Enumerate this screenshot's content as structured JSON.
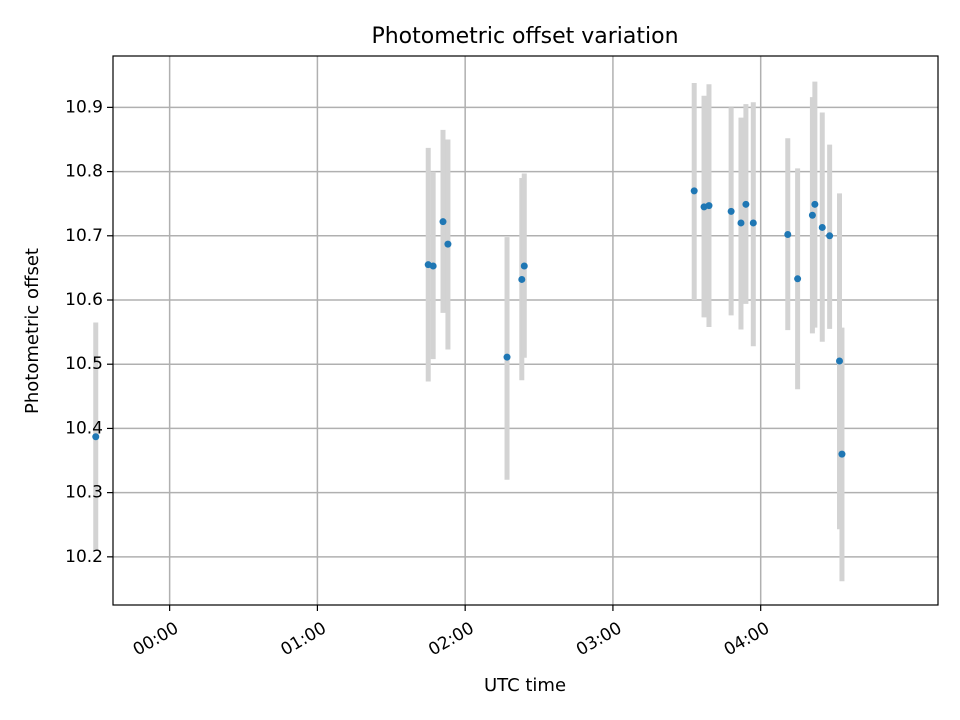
{
  "chart_data": {
    "type": "scatter",
    "title": "Photometric offset variation",
    "xlabel": "UTC time",
    "ylabel": "Photometric offset",
    "x_unit": "hours UTC",
    "xlim": [
      "23:37",
      "05:12"
    ],
    "ylim": [
      10.125,
      10.98
    ],
    "x_ticks": [
      "00:00",
      "01:00",
      "02:00",
      "03:00",
      "04:00"
    ],
    "y_ticks": [
      "10.2",
      "10.3",
      "10.4",
      "10.5",
      "10.6",
      "10.7",
      "10.8",
      "10.9"
    ],
    "grid": true,
    "series": [
      {
        "color": "#1f77b4",
        "error_color": "#d3d3d3",
        "points": [
          {
            "x": "23:30",
            "y": 10.387,
            "lo": 10.21,
            "hi": 10.565
          },
          {
            "x": "01:45",
            "y": 10.655,
            "lo": 10.473,
            "hi": 10.837
          },
          {
            "x": "01:47",
            "y": 10.653,
            "lo": 10.508,
            "hi": 10.8
          },
          {
            "x": "01:51",
            "y": 10.722,
            "lo": 10.58,
            "hi": 10.865
          },
          {
            "x": "01:53",
            "y": 10.687,
            "lo": 10.523,
            "hi": 10.85
          },
          {
            "x": "02:17",
            "y": 10.511,
            "lo": 10.32,
            "hi": 10.698
          },
          {
            "x": "02:23",
            "y": 10.632,
            "lo": 10.475,
            "hi": 10.79
          },
          {
            "x": "02:24",
            "y": 10.653,
            "lo": 10.51,
            "hi": 10.797
          },
          {
            "x": "03:33",
            "y": 10.77,
            "lo": 10.6,
            "hi": 10.938
          },
          {
            "x": "03:37",
            "y": 10.745,
            "lo": 10.573,
            "hi": 10.918
          },
          {
            "x": "03:39",
            "y": 10.747,
            "lo": 10.558,
            "hi": 10.936
          },
          {
            "x": "03:48",
            "y": 10.738,
            "lo": 10.576,
            "hi": 10.9
          },
          {
            "x": "03:52",
            "y": 10.72,
            "lo": 10.554,
            "hi": 10.884
          },
          {
            "x": "03:54",
            "y": 10.749,
            "lo": 10.594,
            "hi": 10.905
          },
          {
            "x": "03:57",
            "y": 10.72,
            "lo": 10.528,
            "hi": 10.908
          },
          {
            "x": "04:11",
            "y": 10.702,
            "lo": 10.553,
            "hi": 10.852
          },
          {
            "x": "04:15",
            "y": 10.633,
            "lo": 10.461,
            "hi": 10.805
          },
          {
            "x": "04:21",
            "y": 10.732,
            "lo": 10.548,
            "hi": 10.916
          },
          {
            "x": "04:22",
            "y": 10.749,
            "lo": 10.557,
            "hi": 10.94
          },
          {
            "x": "04:25",
            "y": 10.713,
            "lo": 10.535,
            "hi": 10.892
          },
          {
            "x": "04:28",
            "y": 10.7,
            "lo": 10.555,
            "hi": 10.842
          },
          {
            "x": "04:32",
            "y": 10.505,
            "lo": 10.243,
            "hi": 10.766
          },
          {
            "x": "04:33",
            "y": 10.36,
            "lo": 10.162,
            "hi": 10.557
          }
        ]
      }
    ]
  }
}
